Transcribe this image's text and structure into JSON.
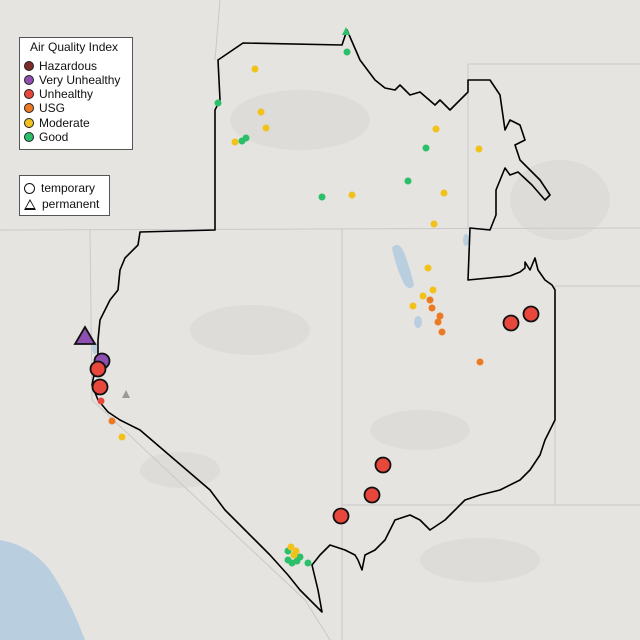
{
  "legend_aqi": {
    "title": "Air Quality Index",
    "items": [
      {
        "label": "Hazardous",
        "color": "#7e2c2a"
      },
      {
        "label": "Very Unhealthy",
        "color": "#8e4fb0"
      },
      {
        "label": "Unhealthy",
        "color": "#e8473b"
      },
      {
        "label": "USG",
        "color": "#ec7a22"
      },
      {
        "label": "Moderate",
        "color": "#f2c21b"
      },
      {
        "label": "Good",
        "color": "#2bbf6a"
      }
    ]
  },
  "legend_type": {
    "items": [
      {
        "label": "temporary",
        "shape": "circle"
      },
      {
        "label": "permanent",
        "shape": "triangle"
      }
    ]
  },
  "map_colors": {
    "land": "#e6e4e1",
    "water": "#b9cfe0",
    "state_line": "#c9c9c9",
    "boundary": "#000000"
  }
}
